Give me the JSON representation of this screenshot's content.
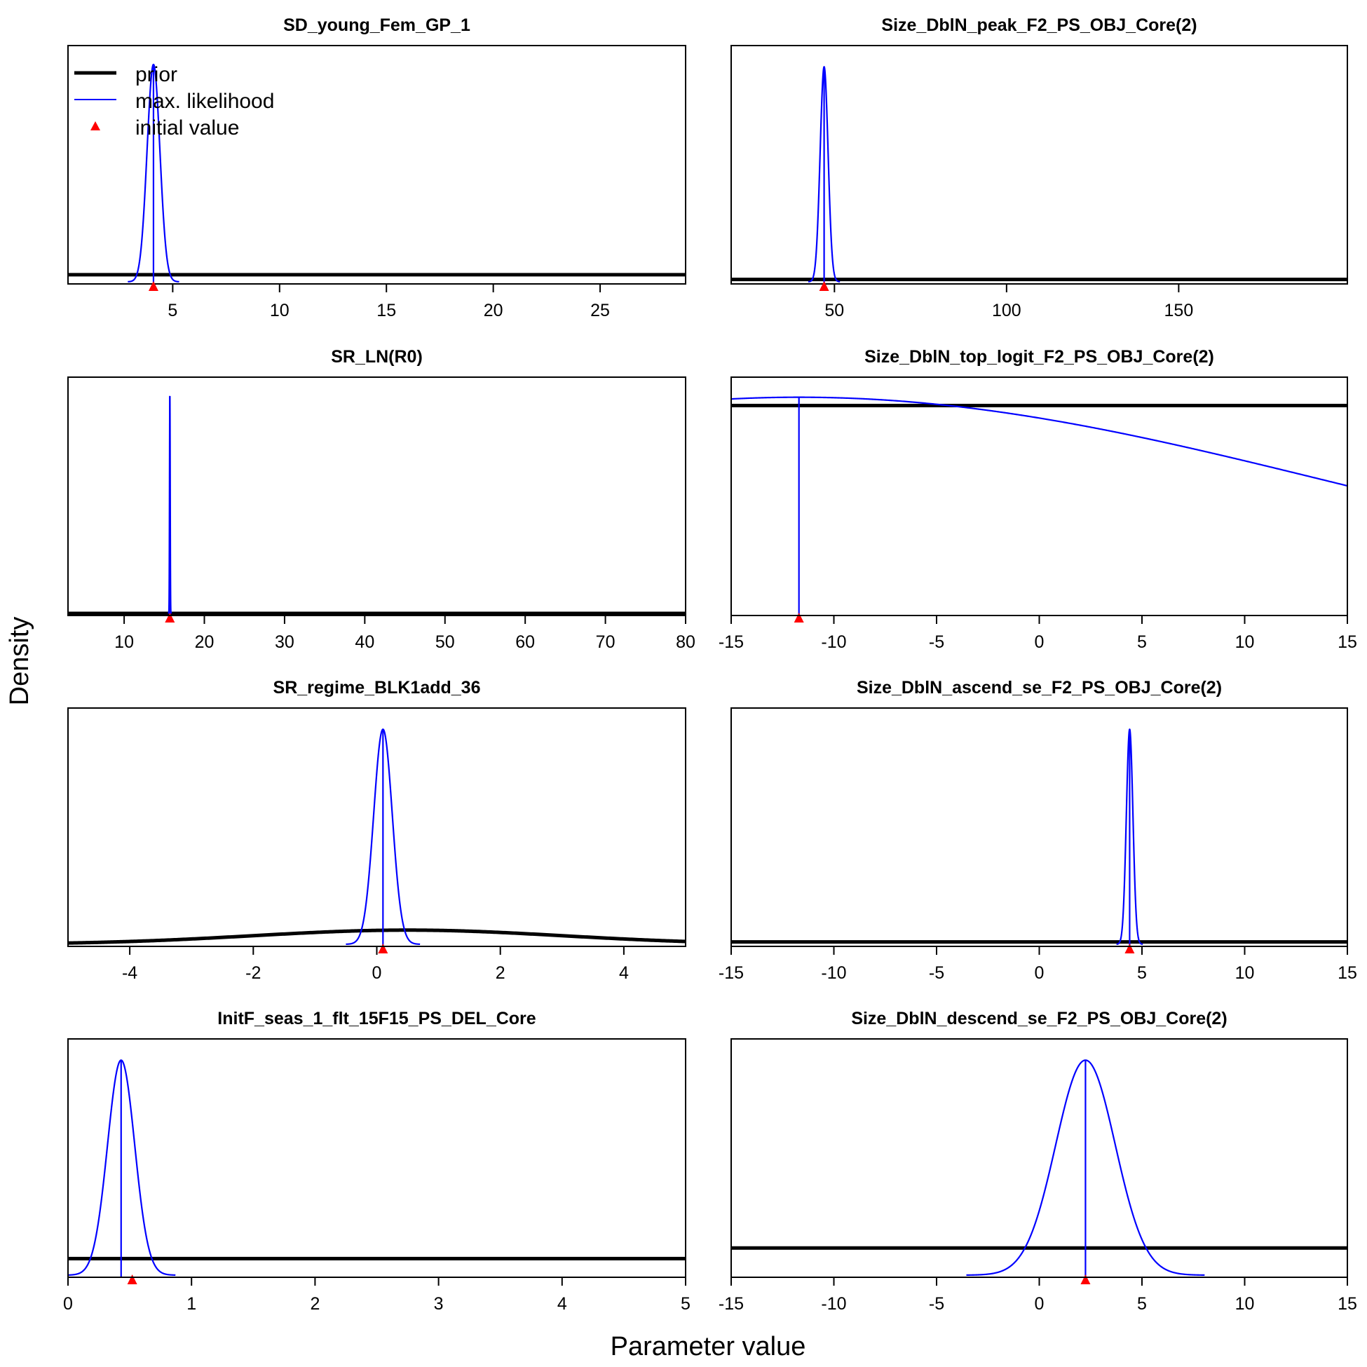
{
  "figure": {
    "xlabel": "Parameter value",
    "ylabel": "Density",
    "legend": {
      "placement": "top-left of first panel",
      "entries": [
        {
          "label": "prior",
          "color": "#000000",
          "symbol": "thick-line"
        },
        {
          "label": "max. likelihood",
          "color": "#0000ff",
          "symbol": "line"
        },
        {
          "label": "initial value",
          "color": "#ff0000",
          "symbol": "triangle"
        }
      ]
    }
  },
  "chart_data": [
    {
      "type": "line",
      "title": "SD_young_Fem_GP_1",
      "xlim": [
        0.1,
        29
      ],
      "xticks": [
        5,
        10,
        15,
        20,
        25
      ],
      "prior": {
        "kind": "flat",
        "level": 0.03
      },
      "mle": {
        "mean": 4.1,
        "sd": 0.3,
        "height": 0.92
      },
      "initial_value": 4.1
    },
    {
      "type": "line",
      "title": "Size_DblN_peak_F2_PS_OBJ_Core(2)",
      "xlim": [
        20,
        199
      ],
      "xticks": [
        50,
        100,
        150
      ],
      "prior": {
        "kind": "flat",
        "level": 0.01
      },
      "mle": {
        "mean": 47,
        "sd": 1.15,
        "height": 0.91
      },
      "initial_value": 47
    },
    {
      "type": "line",
      "title": "SR_LN(R0)",
      "xlim": [
        3,
        80
      ],
      "xticks": [
        10,
        20,
        30,
        40,
        50,
        60,
        70,
        80
      ],
      "prior": {
        "kind": "flat",
        "level": 0.0
      },
      "mle": {
        "mean": 15.7,
        "sd": 0.04,
        "height": 0.92
      },
      "initial_value": 15.7
    },
    {
      "type": "line",
      "title": "Size_DblN_top_logit_F2_PS_OBJ_Core(2)",
      "xlim": [
        -15,
        15
      ],
      "xticks": [
        -15,
        -10,
        -5,
        0,
        5,
        10,
        15
      ],
      "prior": {
        "kind": "flat",
        "level": 0.88
      },
      "mle": {
        "mean": -11.7,
        "sd": 26.0,
        "height": 0.915,
        "drop_line_height": 0.915
      },
      "initial_value": -11.7
    },
    {
      "type": "line",
      "title": "SR_regime_BLK1add_36",
      "xlim": [
        -5,
        5
      ],
      "xticks": [
        -4,
        -2,
        0,
        2,
        4
      ],
      "prior": {
        "kind": "normal",
        "mean": 0.5,
        "sd": 2.5,
        "height": 0.06
      },
      "mle": {
        "mean": 0.1,
        "sd": 0.15,
        "height": 0.91
      },
      "initial_value": 0.1
    },
    {
      "type": "line",
      "title": "Size_DblN_ascend_se_F2_PS_OBJ_Core(2)",
      "xlim": [
        -15,
        15
      ],
      "xticks": [
        -15,
        -10,
        -5,
        0,
        5,
        10,
        15
      ],
      "prior": {
        "kind": "flat",
        "level": 0.01
      },
      "mle": {
        "mean": 4.4,
        "sd": 0.16,
        "height": 0.91
      },
      "initial_value": 4.4
    },
    {
      "type": "line",
      "title": "InitF_seas_1_flt_15F15_PS_DEL_Core",
      "xlim": [
        0,
        5
      ],
      "xticks": [
        0,
        1,
        2,
        3,
        4,
        5
      ],
      "prior": {
        "kind": "flat",
        "level": 0.07
      },
      "mle": {
        "mean": 0.43,
        "sd": 0.11,
        "height": 0.91
      },
      "initial_value": 0.52
    },
    {
      "type": "line",
      "title": "Size_DblN_descend_se_F2_PS_OBJ_Core(2)",
      "xlim": [
        -15,
        15
      ],
      "xticks": [
        -15,
        -10,
        -5,
        0,
        5,
        10,
        15
      ],
      "prior": {
        "kind": "flat",
        "level": 0.115
      },
      "mle": {
        "mean": 2.25,
        "sd": 1.45,
        "height": 0.91
      },
      "initial_value": 2.25
    }
  ]
}
